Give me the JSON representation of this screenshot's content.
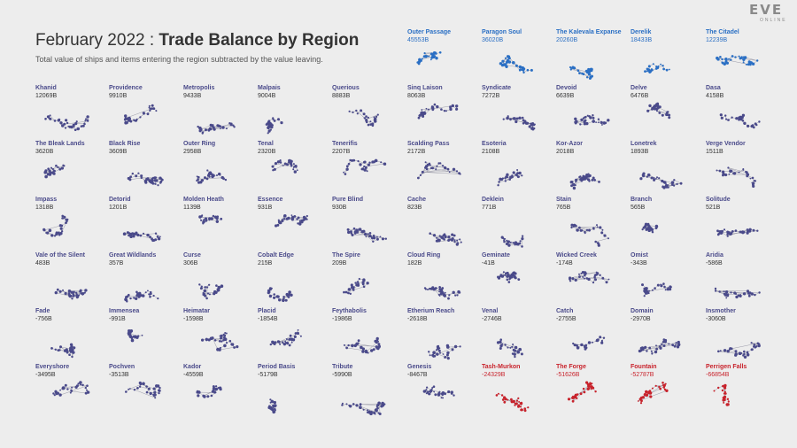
{
  "header": {
    "title_prefix": "February 2022 : ",
    "title_bold": "Trade Balance by Region",
    "subtitle": "Total value of ships and items entering the region subtracted by the value leaving."
  },
  "logo": {
    "name": "EVE",
    "tagline": "ONLINE"
  },
  "colors": {
    "positive_top": "#2a6fc4",
    "neutral": "#4a4a8a",
    "negative": "#c8232c",
    "text_dark": "#333333"
  },
  "chart_data": {
    "type": "small-multiples",
    "title": "February 2022 : Trade Balance by Region",
    "unit": "B",
    "regions": [
      {
        "name": "Outer Passage",
        "value": "45553B"
      },
      {
        "name": "Paragon Soul",
        "value": "36020B"
      },
      {
        "name": "The Kalevala Expanse",
        "value": "20260B"
      },
      {
        "name": "Derelik",
        "value": "18433B"
      },
      {
        "name": "The Citadel",
        "value": "12239B"
      },
      {
        "name": "Khanid",
        "value": "12069B"
      },
      {
        "name": "Providence",
        "value": "9910B"
      },
      {
        "name": "Metropolis",
        "value": "9433B"
      },
      {
        "name": "Malpais",
        "value": "9004B"
      },
      {
        "name": "Querious",
        "value": "8883B"
      },
      {
        "name": "Sinq Laison",
        "value": "8063B"
      },
      {
        "name": "Syndicate",
        "value": "7272B"
      },
      {
        "name": "Devoid",
        "value": "6639B"
      },
      {
        "name": "Delve",
        "value": "6476B"
      },
      {
        "name": "Dasa",
        "value": "4158B"
      },
      {
        "name": "The Bleak Lands",
        "value": "3620B"
      },
      {
        "name": "Black Rise",
        "value": "3609B"
      },
      {
        "name": "Outer Ring",
        "value": "2958B"
      },
      {
        "name": "Tenal",
        "value": "2320B"
      },
      {
        "name": "Tenerifis",
        "value": "2207B"
      },
      {
        "name": "Scalding Pass",
        "value": "2172B"
      },
      {
        "name": "Esoteria",
        "value": "2108B"
      },
      {
        "name": "Kor-Azor",
        "value": "2018B"
      },
      {
        "name": "Lonetrek",
        "value": "1893B"
      },
      {
        "name": "Verge Vendor",
        "value": "1511B"
      },
      {
        "name": "Impass",
        "value": "1318B"
      },
      {
        "name": "Detorid",
        "value": "1201B"
      },
      {
        "name": "Molden Heath",
        "value": "1139B"
      },
      {
        "name": "Essence",
        "value": "931B"
      },
      {
        "name": "Pure Blind",
        "value": "930B"
      },
      {
        "name": "Cache",
        "value": "823B"
      },
      {
        "name": "Deklein",
        "value": "771B"
      },
      {
        "name": "Stain",
        "value": "765B"
      },
      {
        "name": "Branch",
        "value": "565B"
      },
      {
        "name": "Solitude",
        "value": "521B"
      },
      {
        "name": "Vale of the Silent",
        "value": "483B"
      },
      {
        "name": "Great Wildlands",
        "value": "357B"
      },
      {
        "name": "Curse",
        "value": "306B"
      },
      {
        "name": "Cobalt Edge",
        "value": "215B"
      },
      {
        "name": "The Spire",
        "value": "209B"
      },
      {
        "name": "Cloud Ring",
        "value": "182B"
      },
      {
        "name": "Geminate",
        "value": "-41B"
      },
      {
        "name": "Wicked Creek",
        "value": "-174B"
      },
      {
        "name": "Omist",
        "value": "-343B"
      },
      {
        "name": "Aridia",
        "value": "-586B"
      },
      {
        "name": "Fade",
        "value": "-756B"
      },
      {
        "name": "Immensea",
        "value": "-991B"
      },
      {
        "name": "Heimatar",
        "value": "-1598B"
      },
      {
        "name": "Placid",
        "value": "-1854B"
      },
      {
        "name": "Feythabolis",
        "value": "-1986B"
      },
      {
        "name": "Etherium Reach",
        "value": "-2618B"
      },
      {
        "name": "Venal",
        "value": "-2746B"
      },
      {
        "name": "Catch",
        "value": "-2755B"
      },
      {
        "name": "Domain",
        "value": "-2970B"
      },
      {
        "name": "Insmother",
        "value": "-3060B"
      },
      {
        "name": "Everyshore",
        "value": "-3495B"
      },
      {
        "name": "Pochven",
        "value": "-3513B"
      },
      {
        "name": "Kador",
        "value": "-4559B"
      },
      {
        "name": "Period Basis",
        "value": "-5179B"
      },
      {
        "name": "Tribute",
        "value": "-5990B"
      },
      {
        "name": "Genesis",
        "value": "-8467B"
      },
      {
        "name": "Tash-Murkon",
        "value": "-24329B"
      },
      {
        "name": "The Forge",
        "value": "-51626B"
      },
      {
        "name": "Fountain",
        "value": "-52787B"
      },
      {
        "name": "Perrigen Falls",
        "value": "-66854B"
      }
    ]
  }
}
